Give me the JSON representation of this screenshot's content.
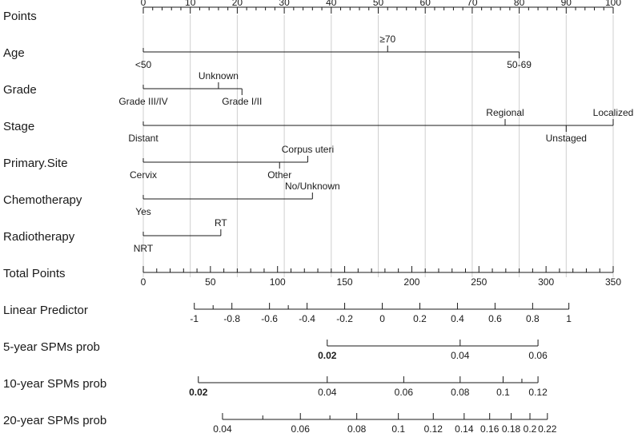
{
  "chart_data": {
    "type": "nomogram",
    "grid": true,
    "rows": [
      {
        "name": "Points",
        "kind": "axis",
        "range": [
          0,
          100
        ],
        "minor_step": 2,
        "labels": [
          {
            "text": "0",
            "value": 0
          },
          {
            "text": "10",
            "value": 10
          },
          {
            "text": "20",
            "value": 20
          },
          {
            "text": "30",
            "value": 30
          },
          {
            "text": "40",
            "value": 40
          },
          {
            "text": "50",
            "value": 50
          },
          {
            "text": "60",
            "value": 60
          },
          {
            "text": "70",
            "value": 70
          },
          {
            "text": "80",
            "value": 80
          },
          {
            "text": "90",
            "value": 90
          },
          {
            "text": "100",
            "value": 100
          }
        ]
      },
      {
        "name": "Age",
        "kind": "factor",
        "levels": [
          {
            "text": "<50",
            "points": 0,
            "side": "below"
          },
          {
            "text": "≥70",
            "points": 52,
            "side": "above"
          },
          {
            "text": "50-69",
            "points": 80,
            "side": "below"
          }
        ]
      },
      {
        "name": "Grade",
        "kind": "factor",
        "levels": [
          {
            "text": "Grade III/IV",
            "points": 0,
            "side": "below"
          },
          {
            "text": "Unknown",
            "points": 16,
            "side": "above"
          },
          {
            "text": "Grade I/II",
            "points": 21,
            "side": "below"
          }
        ]
      },
      {
        "name": "Stage",
        "kind": "factor",
        "levels": [
          {
            "text": "Distant",
            "points": 0,
            "side": "below"
          },
          {
            "text": "Regional",
            "points": 77,
            "side": "above"
          },
          {
            "text": "Unstaged",
            "points": 90,
            "side": "below"
          },
          {
            "text": "Localized",
            "points": 100,
            "side": "above"
          }
        ]
      },
      {
        "name": "Primary.Site",
        "kind": "factor",
        "levels": [
          {
            "text": "Cervix",
            "points": 0,
            "side": "below"
          },
          {
            "text": "Other",
            "points": 29,
            "side": "below"
          },
          {
            "text": "Corpus uteri",
            "points": 35,
            "side": "above"
          }
        ]
      },
      {
        "name": "Chemotherapy",
        "kind": "factor",
        "levels": [
          {
            "text": "Yes",
            "points": 0,
            "side": "below"
          },
          {
            "text": "No/Unknown",
            "points": 36,
            "side": "above"
          }
        ]
      },
      {
        "name": "Radiotherapy",
        "kind": "factor",
        "levels": [
          {
            "text": "NRT",
            "points": 0,
            "side": "below"
          },
          {
            "text": "RT",
            "points": 16.5,
            "side": "above"
          }
        ]
      },
      {
        "name": "Total Points",
        "kind": "axis",
        "range": [
          0,
          350
        ],
        "minor_step": 10,
        "labels": [
          {
            "text": "0",
            "value": 0
          },
          {
            "text": "50",
            "value": 50
          },
          {
            "text": "100",
            "value": 100
          },
          {
            "text": "150",
            "value": 150
          },
          {
            "text": "200",
            "value": 200
          },
          {
            "text": "250",
            "value": 250
          },
          {
            "text": "300",
            "value": 300
          },
          {
            "text": "350",
            "value": 350
          }
        ]
      },
      {
        "name": "Linear Predictor",
        "kind": "axis",
        "range": [
          -1,
          1
        ],
        "labels": [
          {
            "text": "-1",
            "value": -1,
            "total": 38
          },
          {
            "text": "-0.8",
            "value": -0.8,
            "total": 66
          },
          {
            "text": "-0.6",
            "value": -0.6,
            "total": 94
          },
          {
            "text": "-0.4",
            "value": -0.4,
            "total": 122
          },
          {
            "text": "-0.2",
            "value": -0.2,
            "total": 150
          },
          {
            "text": "0",
            "value": 0,
            "total": 178
          },
          {
            "text": "0.2",
            "value": 0.2,
            "total": 206
          },
          {
            "text": "0.4",
            "value": 0.4,
            "total": 234
          },
          {
            "text": "0.6",
            "value": 0.6,
            "total": 262
          },
          {
            "text": "0.8",
            "value": 0.8,
            "total": 290
          },
          {
            "text": "1",
            "value": 1,
            "total": 317
          }
        ],
        "extra_ticks": [
          {
            "value": -0.9,
            "total": 52
          },
          {
            "value": -0.5,
            "total": 108
          }
        ]
      },
      {
        "name": "5-year SPMs prob",
        "kind": "axis",
        "labels": [
          {
            "text": "0.02",
            "value": 0.02,
            "total": 137,
            "bold": true
          },
          {
            "text": "0.04",
            "value": 0.04,
            "total": 236
          },
          {
            "text": "0.06",
            "value": 0.06,
            "total": 294
          }
        ]
      },
      {
        "name": "10-year SPMs prob",
        "kind": "axis",
        "labels": [
          {
            "text": "0.02",
            "value": 0.02,
            "total": 41,
            "bold": true
          },
          {
            "text": "0.04",
            "value": 0.04,
            "total": 137
          },
          {
            "text": "0.06",
            "value": 0.06,
            "total": 194
          },
          {
            "text": "0.08",
            "value": 0.08,
            "total": 236
          },
          {
            "text": "0.1",
            "value": 0.1,
            "total": 268
          },
          {
            "text": "0.12",
            "value": 0.12,
            "total": 294
          }
        ],
        "extra_ticks": [
          {
            "value": 0.11,
            "total": 282
          }
        ]
      },
      {
        "name": "20-year SPMs prob",
        "kind": "axis",
        "labels": [
          {
            "text": "0.04",
            "value": 0.04,
            "total": 59
          },
          {
            "text": "0.06",
            "value": 0.06,
            "total": 117
          },
          {
            "text": "0.08",
            "value": 0.08,
            "total": 159
          },
          {
            "text": "0.1",
            "value": 0.1,
            "total": 190
          },
          {
            "text": "0.12",
            "value": 0.12,
            "total": 216
          },
          {
            "text": "0.14",
            "value": 0.14,
            "total": 239
          },
          {
            "text": "0.16",
            "value": 0.16,
            "total": 258
          },
          {
            "text": "0.18",
            "value": 0.18,
            "total": 274
          },
          {
            "text": "0.2",
            "value": 0.2,
            "total": 288
          },
          {
            "text": "0.22",
            "value": 0.22,
            "total": 301
          }
        ],
        "extra_ticks": [
          {
            "value": 0.05,
            "total": 89
          },
          {
            "value": 0.07,
            "total": 139
          }
        ]
      }
    ]
  }
}
